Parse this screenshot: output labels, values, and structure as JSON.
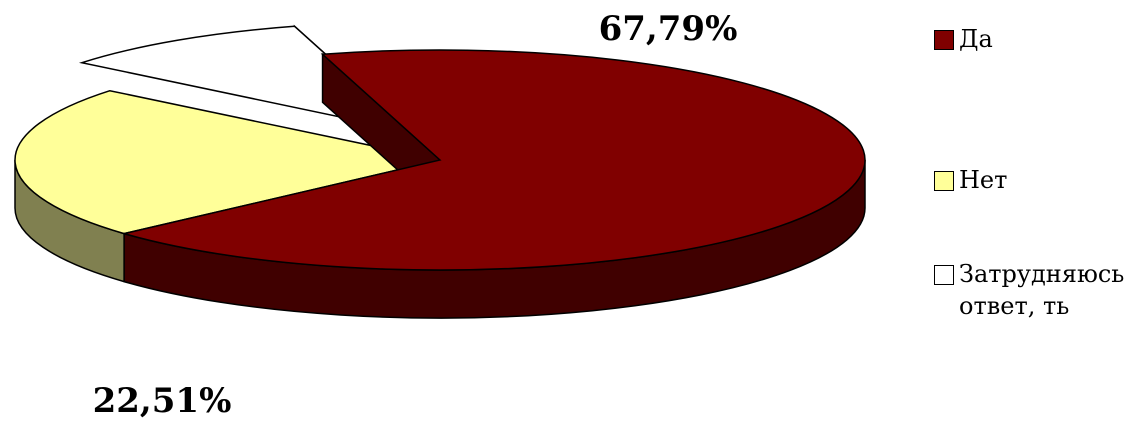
{
  "chart_data": {
    "type": "pie",
    "style": "3d-exploded",
    "title": "",
    "slices": [
      {
        "label": "Да",
        "value": 67.79,
        "data_label": "67,79%",
        "color": "#800000",
        "side_color": "#400000"
      },
      {
        "label": "Нет",
        "value": 22.51,
        "data_label": "22,51%",
        "color": "#FFFF99",
        "side_color": "#808050"
      },
      {
        "label": "Затрудняюсь ответ, ть",
        "value": 9.7,
        "data_label": "",
        "color": "#FFFFFF",
        "side_color": "#808080"
      }
    ],
    "legend_position": "right"
  }
}
